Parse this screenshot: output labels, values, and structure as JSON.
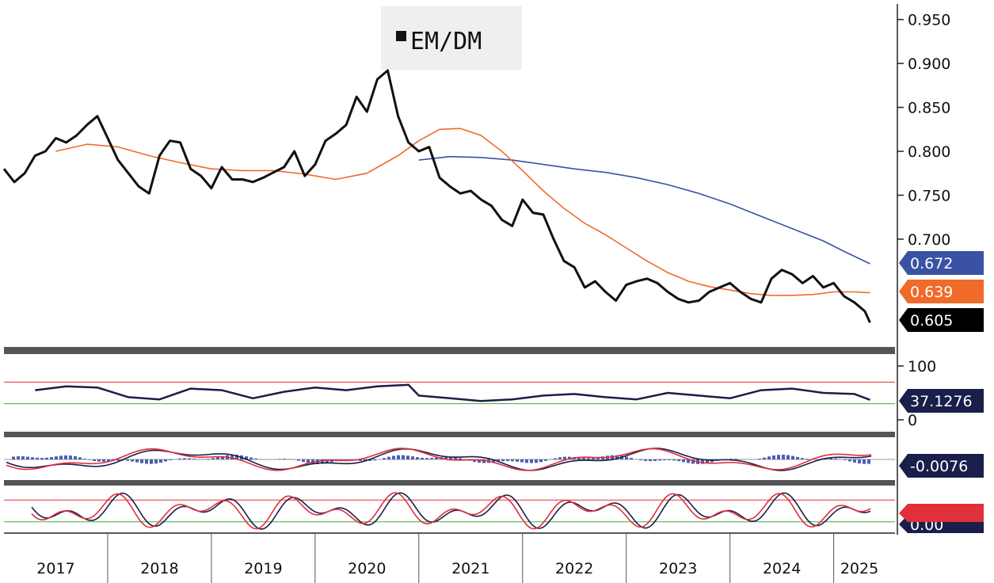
{
  "chart_data": [
    {
      "panel": "price",
      "type": "line",
      "legend": [
        {
          "name": "EM/DM",
          "color": "#111111"
        }
      ],
      "y_ticks": [
        "0.950",
        "0.900",
        "0.850",
        "0.800",
        "0.750",
        "0.700"
      ],
      "ylim": [
        0.58,
        0.965
      ],
      "x_labels": [
        "2017",
        "2018",
        "2019",
        "2020",
        "2021",
        "2022",
        "2023",
        "2024",
        "2025"
      ],
      "xlim": [
        2017.0,
        2025.4
      ],
      "series": [
        {
          "name": "EM/DM",
          "color": "#111111",
          "x": [
            2017.0,
            2017.1,
            2017.2,
            2017.3,
            2017.4,
            2017.5,
            2017.6,
            2017.7,
            2017.8,
            2017.9,
            2018.0,
            2018.1,
            2018.2,
            2018.3,
            2018.4,
            2018.5,
            2018.6,
            2018.7,
            2018.8,
            2018.9,
            2019.0,
            2019.1,
            2019.2,
            2019.3,
            2019.4,
            2019.5,
            2019.6,
            2019.7,
            2019.8,
            2019.9,
            2020.0,
            2020.1,
            2020.2,
            2020.3,
            2020.4,
            2020.5,
            2020.6,
            2020.7,
            2020.8,
            2020.9,
            2021.0,
            2021.1,
            2021.2,
            2021.3,
            2021.4,
            2021.5,
            2021.6,
            2021.7,
            2021.8,
            2021.9,
            2022.0,
            2022.1,
            2022.2,
            2022.3,
            2022.4,
            2022.5,
            2022.6,
            2022.7,
            2022.8,
            2022.9,
            2023.0,
            2023.1,
            2023.2,
            2023.3,
            2023.4,
            2023.5,
            2023.6,
            2023.7,
            2023.8,
            2023.9,
            2024.0,
            2024.1,
            2024.2,
            2024.3,
            2024.4,
            2024.5,
            2024.6,
            2024.7,
            2024.8,
            2024.9,
            2025.0,
            2025.1,
            2025.2,
            2025.3,
            2025.35
          ],
          "values": [
            0.78,
            0.765,
            0.775,
            0.795,
            0.8,
            0.815,
            0.81,
            0.818,
            0.83,
            0.84,
            0.815,
            0.79,
            0.775,
            0.76,
            0.752,
            0.795,
            0.812,
            0.81,
            0.78,
            0.772,
            0.758,
            0.782,
            0.768,
            0.768,
            0.765,
            0.77,
            0.776,
            0.782,
            0.8,
            0.772,
            0.785,
            0.812,
            0.82,
            0.83,
            0.862,
            0.845,
            0.882,
            0.892,
            0.84,
            0.81,
            0.8,
            0.805,
            0.77,
            0.76,
            0.752,
            0.755,
            0.745,
            0.738,
            0.722,
            0.715,
            0.745,
            0.73,
            0.728,
            0.7,
            0.675,
            0.668,
            0.645,
            0.652,
            0.64,
            0.63,
            0.648,
            0.652,
            0.655,
            0.65,
            0.64,
            0.632,
            0.628,
            0.63,
            0.64,
            0.645,
            0.65,
            0.64,
            0.632,
            0.628,
            0.655,
            0.665,
            0.66,
            0.65,
            0.658,
            0.645,
            0.65,
            0.635,
            0.628,
            0.618,
            0.605
          ]
        },
        {
          "name": "",
          "color": "#f06a2a",
          "x": [
            2017.5,
            2017.8,
            2018.1,
            2018.4,
            2018.7,
            2019.0,
            2019.3,
            2019.6,
            2019.9,
            2020.2,
            2020.5,
            2020.8,
            2021.0,
            2021.2,
            2021.4,
            2021.6,
            2021.8,
            2022.0,
            2022.2,
            2022.4,
            2022.6,
            2022.8,
            2023.0,
            2023.2,
            2023.4,
            2023.6,
            2023.8,
            2024.0,
            2024.2,
            2024.4,
            2024.6,
            2024.8,
            2025.0,
            2025.2,
            2025.35
          ],
          "values": [
            0.8,
            0.808,
            0.805,
            0.795,
            0.787,
            0.78,
            0.778,
            0.778,
            0.774,
            0.768,
            0.775,
            0.795,
            0.812,
            0.825,
            0.826,
            0.818,
            0.8,
            0.778,
            0.755,
            0.735,
            0.718,
            0.705,
            0.69,
            0.675,
            0.662,
            0.652,
            0.646,
            0.642,
            0.638,
            0.636,
            0.636,
            0.637,
            0.64,
            0.64,
            0.639
          ]
        },
        {
          "name": "",
          "color": "#3a52a3",
          "x": [
            2021.0,
            2021.3,
            2021.6,
            2021.9,
            2022.2,
            2022.5,
            2022.8,
            2023.1,
            2023.4,
            2023.7,
            2024.0,
            2024.3,
            2024.6,
            2024.9,
            2025.1,
            2025.35
          ],
          "values": [
            0.79,
            0.794,
            0.793,
            0.79,
            0.785,
            0.78,
            0.776,
            0.77,
            0.762,
            0.752,
            0.74,
            0.726,
            0.712,
            0.698,
            0.686,
            0.672
          ]
        }
      ],
      "tags": [
        {
          "text": "0.672",
          "color": "#3a52a3"
        },
        {
          "text": "0.639",
          "color": "#f06a2a"
        },
        {
          "text": "0.605",
          "color": "#000000"
        }
      ]
    },
    {
      "panel": "rsi",
      "type": "line",
      "y_ticks": [
        "100",
        "0"
      ],
      "ylim": [
        0,
        100
      ],
      "reference_lines": [
        {
          "value": 70,
          "color": "#e0303a"
        },
        {
          "value": 30,
          "color": "#3cae3c"
        }
      ],
      "series": [
        {
          "name": "",
          "color": "#1a1e4a",
          "x": [
            2017.3,
            2017.6,
            2017.9,
            2018.2,
            2018.5,
            2018.8,
            2019.1,
            2019.4,
            2019.7,
            2020.0,
            2020.3,
            2020.6,
            2020.9,
            2021.0,
            2021.3,
            2021.6,
            2021.9,
            2022.2,
            2022.5,
            2022.8,
            2023.1,
            2023.4,
            2023.7,
            2024.0,
            2024.3,
            2024.6,
            2024.9,
            2025.2,
            2025.35
          ],
          "values": [
            55,
            62,
            60,
            42,
            38,
            58,
            55,
            40,
            52,
            60,
            55,
            62,
            65,
            45,
            40,
            35,
            38,
            45,
            48,
            42,
            38,
            50,
            45,
            40,
            55,
            58,
            50,
            48,
            37.1
          ]
        }
      ],
      "tags": [
        {
          "text": "37.1276",
          "color": "#1a1e4a"
        }
      ]
    },
    {
      "panel": "macd",
      "type": "line",
      "series": [
        {
          "name": "",
          "color": "#1a1e4a"
        },
        {
          "name": "",
          "color": "#e0303a"
        }
      ],
      "histogram_color": "#4a5fb5",
      "tags": [
        {
          "text": "-0.0076",
          "color": "#1a1e4a"
        }
      ]
    },
    {
      "panel": "stochastic",
      "type": "line",
      "reference_lines": [
        {
          "value": 80,
          "color": "#e0303a"
        },
        {
          "value": 20,
          "color": "#3cae3c"
        }
      ],
      "series": [
        {
          "name": "",
          "color": "#1a1e4a"
        },
        {
          "name": "",
          "color": "#e0303a"
        }
      ],
      "tags": [
        {
          "text": "0.00",
          "color": "#1a1e4a"
        },
        {
          "text": "",
          "color": "#e0303a"
        }
      ]
    }
  ]
}
